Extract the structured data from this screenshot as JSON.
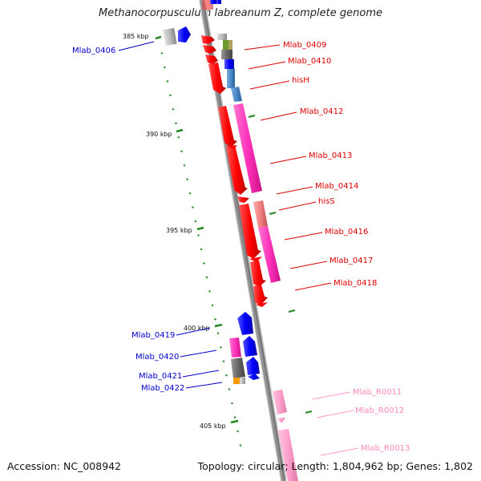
{
  "title": "Methanocorpusculum labreanum Z, complete genome",
  "footer": {
    "accession": "Accession: NC_008942",
    "topology": "Topology: circular; Length: 1,804,962 bp; Genes: 1,802"
  },
  "scale_labels": [
    "385 kbp",
    "390 kbp",
    "395 kbp",
    "400 kbp",
    "405 kbp"
  ],
  "gene_labels": {
    "right": [
      "Mlab_0409",
      "Mlab_0410",
      "hisH",
      "Mlab_0412",
      "Mlab_0413",
      "Mlab_0414",
      "hisS",
      "Mlab_0416",
      "Mlab_0417",
      "Mlab_0418"
    ],
    "left": [
      "Mlab_0406",
      "Mlab_0419",
      "Mlab_0420",
      "Mlab_0421",
      "Mlab_0422"
    ],
    "rna": [
      "Mlab_R0011",
      "Mlab_R0012",
      "Mlab_R0013"
    ]
  },
  "colors": {
    "plus_strand": "#ff0000",
    "minus_strand": "#0000ee",
    "cog_pink": "#ff3fbf",
    "rna": "#ff99cc",
    "label_red": "#dd0000",
    "label_blue": "#0000cc",
    "label_pink": "#ff88bb",
    "tick_green": "#228822"
  }
}
